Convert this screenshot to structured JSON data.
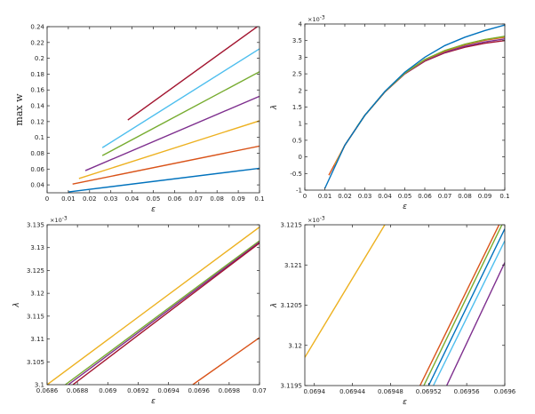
{
  "chart_data": [
    {
      "type": "line",
      "xlabel": "ε",
      "ylabel": "max w",
      "xlim": [
        0,
        0.1
      ],
      "ylim": [
        0.03,
        0.24
      ],
      "xticks": [
        "0",
        "0.01",
        "0.02",
        "0.03",
        "0.04",
        "0.05",
        "0.06",
        "0.07",
        "0.08",
        "0.09",
        "0.1"
      ],
      "yticks": [
        "0.04",
        "0.06",
        "0.08",
        "0.1",
        "0.12",
        "0.14",
        "0.16",
        "0.18",
        "0.2",
        "0.22",
        "0.24"
      ],
      "series": [
        {
          "color": "#0072bd",
          "x": [
            0.01,
            0.1
          ],
          "y": [
            0.031,
            0.061
          ]
        },
        {
          "color": "#d95319",
          "x": [
            0.012,
            0.1
          ],
          "y": [
            0.041,
            0.089
          ]
        },
        {
          "color": "#edb120",
          "x": [
            0.015,
            0.1
          ],
          "y": [
            0.048,
            0.121
          ]
        },
        {
          "color": "#7e2f8e",
          "x": [
            0.018,
            0.1
          ],
          "y": [
            0.058,
            0.152
          ]
        },
        {
          "color": "#77ac30",
          "x": [
            0.026,
            0.1
          ],
          "y": [
            0.077,
            0.183
          ]
        },
        {
          "color": "#4dbeee",
          "x": [
            0.026,
            0.1
          ],
          "y": [
            0.087,
            0.212
          ]
        },
        {
          "color": "#a2142f",
          "x": [
            0.038,
            0.1
          ],
          "y": [
            0.122,
            0.242
          ]
        }
      ]
    },
    {
      "type": "line",
      "xlabel": "ε",
      "ylabel": "λ",
      "exponent": "×10",
      "exponent_power": "-3",
      "xlim": [
        0,
        0.1
      ],
      "ylim": [
        -1,
        4
      ],
      "xticks": [
        "0",
        "0.01",
        "0.02",
        "0.03",
        "0.04",
        "0.05",
        "0.06",
        "0.07",
        "0.08",
        "0.09",
        "0.1"
      ],
      "yticks": [
        "-1",
        "-0.5",
        "0",
        "0.5",
        "1",
        "1.5",
        "2",
        "2.5",
        "3",
        "3.5",
        "4"
      ],
      "series": [
        {
          "color": "#a2142f",
          "x": [
            0.015,
            0.02,
            0.03,
            0.04,
            0.05,
            0.06,
            0.07,
            0.08,
            0.09,
            0.1
          ],
          "y": [
            -0.25,
            0.35,
            1.25,
            1.95,
            2.5,
            2.88,
            3.13,
            3.3,
            3.42,
            3.5
          ]
        },
        {
          "color": "#7e2f8e",
          "x": [
            0.018,
            0.02,
            0.03,
            0.04,
            0.05,
            0.06,
            0.07,
            0.08,
            0.09,
            0.1
          ],
          "y": [
            0.1,
            0.35,
            1.25,
            1.95,
            2.51,
            2.9,
            3.15,
            3.33,
            3.46,
            3.55
          ]
        },
        {
          "color": "#d95319",
          "x": [
            0.012,
            0.02,
            0.03,
            0.04,
            0.05,
            0.06,
            0.07,
            0.08,
            0.09,
            0.1
          ],
          "y": [
            -0.55,
            0.35,
            1.25,
            1.96,
            2.52,
            2.92,
            3.18,
            3.37,
            3.51,
            3.6
          ]
        },
        {
          "color": "#edb120",
          "x": [
            0.015,
            0.02,
            0.03,
            0.04,
            0.05,
            0.06,
            0.07,
            0.08,
            0.09,
            0.1
          ],
          "y": [
            -0.25,
            0.35,
            1.25,
            1.96,
            2.52,
            2.93,
            3.2,
            3.39,
            3.53,
            3.62
          ]
        },
        {
          "color": "#77ac30",
          "x": [
            0.026,
            0.03,
            0.04,
            0.05,
            0.06,
            0.07,
            0.08,
            0.09,
            0.1
          ],
          "y": [
            0.9,
            1.25,
            1.96,
            2.52,
            2.93,
            3.2,
            3.39,
            3.53,
            3.63
          ]
        },
        {
          "color": "#0072bd",
          "x": [
            0.01,
            0.02,
            0.03,
            0.04,
            0.05,
            0.06,
            0.07,
            0.08,
            0.09,
            0.1
          ],
          "y": [
            -0.95,
            0.35,
            1.25,
            1.97,
            2.55,
            3.0,
            3.35,
            3.6,
            3.8,
            3.97
          ]
        }
      ]
    },
    {
      "type": "line",
      "xlabel": "ε",
      "ylabel": "λ",
      "exponent": "×10",
      "exponent_power": "-3",
      "xlim": [
        0.0686,
        0.07
      ],
      "ylim": [
        3.1,
        3.135
      ],
      "xticks": [
        "0.0686",
        "0.0688",
        "0.069",
        "0.0692",
        "0.0694",
        "0.0696",
        "0.0698",
        "0.07"
      ],
      "yticks": [
        "3.1",
        "3.105",
        "3.11",
        "3.115",
        "3.12",
        "3.125",
        "3.13",
        "3.135"
      ],
      "series": [
        {
          "color": "#edb120",
          "x": [
            0.0686,
            0.07
          ],
          "y": [
            3.1,
            3.1345
          ]
        },
        {
          "color": "#77ac30",
          "x": [
            0.06872,
            0.07
          ],
          "y": [
            3.1,
            3.1315
          ]
        },
        {
          "color": "#7e2f8e",
          "x": [
            0.06874,
            0.07
          ],
          "y": [
            3.1,
            3.1312
          ]
        },
        {
          "color": "#a2142f",
          "x": [
            0.06877,
            0.07
          ],
          "y": [
            3.1,
            3.131
          ]
        },
        {
          "color": "#d95319",
          "x": [
            0.06956,
            0.07
          ],
          "y": [
            3.1,
            3.1103
          ]
        }
      ]
    },
    {
      "type": "line",
      "xlabel": "ε",
      "ylabel": "λ",
      "exponent": "×10",
      "exponent_power": "-3",
      "xlim": [
        0.06939,
        0.0696
      ],
      "ylim": [
        3.1195,
        3.1215
      ],
      "xticks": [
        "0.0694",
        "0.06944",
        "0.06948",
        "0.06952",
        "0.06956",
        "0.0696"
      ],
      "yticks": [
        "3.1195",
        "3.12",
        "3.1205",
        "3.121",
        "3.1215"
      ],
      "series": [
        {
          "color": "#edb120",
          "x": [
            0.06939,
            0.069474
          ],
          "y": [
            3.11985,
            3.1215
          ]
        },
        {
          "color": "#d95319",
          "x": [
            0.069511,
            0.069594
          ],
          "y": [
            3.1195,
            3.1215
          ]
        },
        {
          "color": "#77ac30",
          "x": [
            0.069515,
            0.069597
          ],
          "y": [
            3.1195,
            3.1215
          ]
        },
        {
          "color": "#0072bd",
          "x": [
            0.06952,
            0.0696
          ],
          "y": [
            3.1195,
            3.12145
          ]
        },
        {
          "color": "#4dbeee",
          "x": [
            0.069525,
            0.0696
          ],
          "y": [
            3.1195,
            3.1213
          ]
        },
        {
          "color": "#7e2f8e",
          "x": [
            0.069539,
            0.0696
          ],
          "y": [
            3.1195,
            3.12103
          ]
        }
      ]
    }
  ]
}
